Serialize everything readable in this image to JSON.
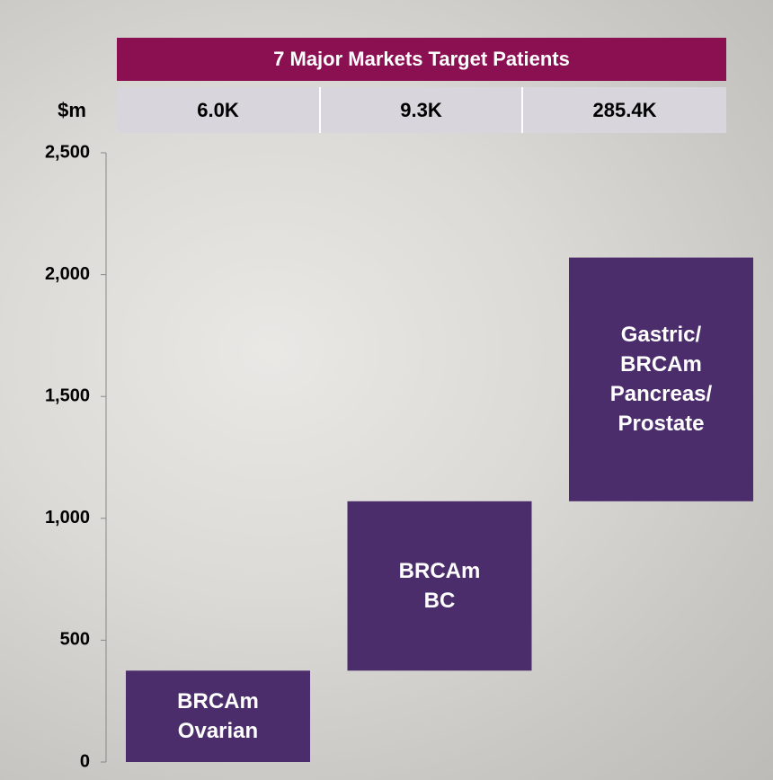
{
  "chart_data": {
    "type": "waterfall",
    "header": "7 Major Markets Target Patients",
    "header_values": [
      "6.0K",
      "9.3K",
      "285.4K"
    ],
    "ylabel": "$m",
    "categories": [
      "BRCAm\nOvarian",
      "BRCAm\nBC",
      "Gastric/\nBRCAm\nPancreas/\nProstate"
    ],
    "values": [
      375,
      695,
      1000
    ],
    "color": "#4b2d6b",
    "ylim": [
      0,
      2500
    ],
    "yticks": [
      0,
      {
        "value": 500,
        "label": "500"
      },
      {
        "value": 1000,
        "label": "1,000"
      },
      {
        "value": 1500,
        "label": "1,500"
      },
      {
        "value": 2000,
        "label": "2,000"
      },
      {
        "value": 2500,
        "label": "2,500"
      }
    ]
  }
}
